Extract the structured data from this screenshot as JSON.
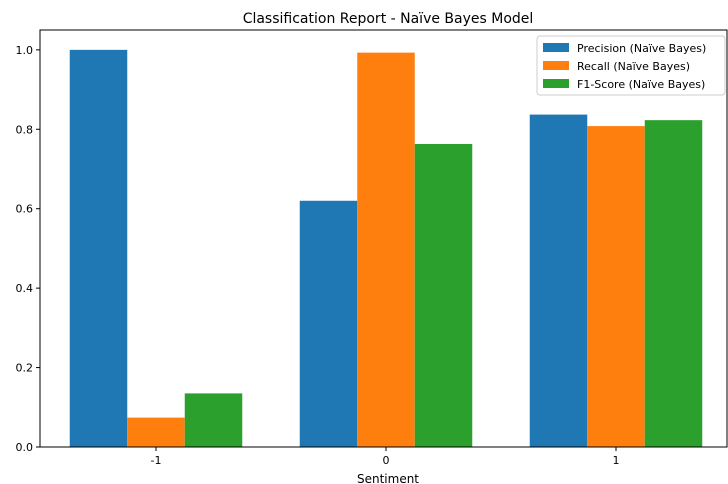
{
  "chart_data": {
    "type": "bar",
    "title": "Classification Report - Naïve Bayes Model",
    "xlabel": "Sentiment",
    "ylabel": "",
    "categories": [
      "-1",
      "0",
      "1"
    ],
    "ylim": [
      0,
      1.05
    ],
    "yticks": [
      "0.0",
      "0.2",
      "0.4",
      "0.6",
      "0.8",
      "1.0"
    ],
    "legend_position": "top-right",
    "grid": false,
    "series": [
      {
        "name": "Precision (Naïve Bayes)",
        "color": "#1f77b4",
        "values": [
          1.0,
          0.62,
          0.837
        ]
      },
      {
        "name": "Recall (Naïve Bayes)",
        "color": "#ff7f0e",
        "values": [
          0.074,
          0.993,
          0.808
        ]
      },
      {
        "name": "F1-Score (Naïve Bayes)",
        "color": "#2ca02c",
        "values": [
          0.135,
          0.763,
          0.823
        ]
      }
    ]
  }
}
